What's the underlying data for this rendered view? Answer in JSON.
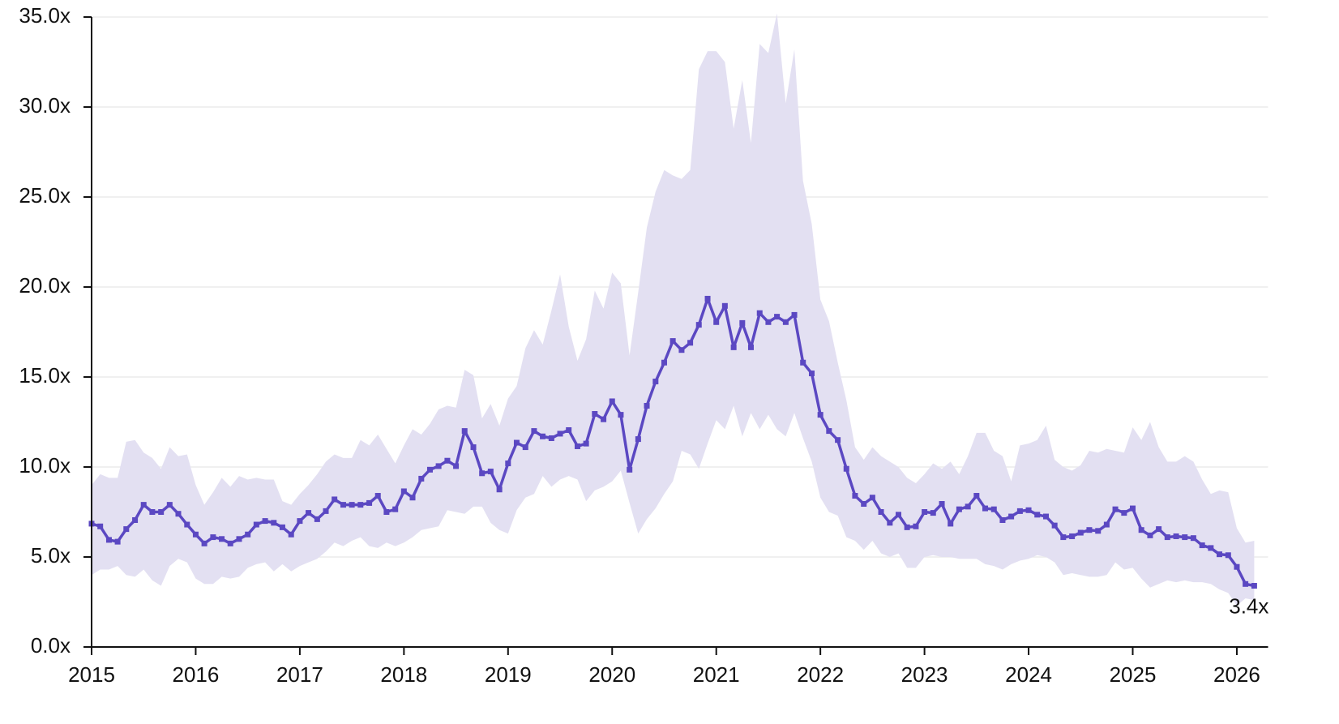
{
  "chart_data": {
    "type": "line",
    "x": [
      2015,
      2015.083,
      2015.167,
      2015.25,
      2015.333,
      2015.417,
      2015.5,
      2015.583,
      2015.667,
      2015.75,
      2015.833,
      2015.917,
      2016,
      2016.083,
      2016.167,
      2016.25,
      2016.333,
      2016.417,
      2016.5,
      2016.583,
      2016.667,
      2016.75,
      2016.833,
      2016.917,
      2017,
      2017.083,
      2017.167,
      2017.25,
      2017.333,
      2017.417,
      2017.5,
      2017.583,
      2017.667,
      2017.75,
      2017.833,
      2017.917,
      2018,
      2018.083,
      2018.167,
      2018.25,
      2018.333,
      2018.417,
      2018.5,
      2018.583,
      2018.667,
      2018.75,
      2018.833,
      2018.917,
      2019,
      2019.083,
      2019.167,
      2019.25,
      2019.333,
      2019.417,
      2019.5,
      2019.583,
      2019.667,
      2019.75,
      2019.833,
      2019.917,
      2020,
      2020.083,
      2020.167,
      2020.25,
      2020.333,
      2020.417,
      2020.5,
      2020.583,
      2020.667,
      2020.75,
      2020.833,
      2020.917,
      2021,
      2021.083,
      2021.167,
      2021.25,
      2021.333,
      2021.417,
      2021.5,
      2021.583,
      2021.667,
      2021.75,
      2021.833,
      2021.917,
      2022,
      2022.083,
      2022.167,
      2022.25,
      2022.333,
      2022.417,
      2022.5,
      2022.583,
      2022.667,
      2022.75,
      2022.833,
      2022.917,
      2023,
      2023.083,
      2023.167,
      2023.25,
      2023.333,
      2023.417,
      2023.5,
      2023.583,
      2023.667,
      2023.75,
      2023.833,
      2023.917,
      2024,
      2024.083,
      2024.167,
      2024.25,
      2024.333,
      2024.417,
      2024.5,
      2024.583,
      2024.667,
      2024.75,
      2024.833,
      2024.917,
      2025,
      2025.083,
      2025.167,
      2025.25,
      2025.333,
      2025.417,
      2025.5,
      2025.583,
      2025.667,
      2025.75,
      2025.833,
      2025.917,
      2026,
      2026.083,
      2026.167
    ],
    "series": [
      {
        "color": "#5b48c2",
        "values": [
          6.85,
          6.7,
          5.95,
          5.85,
          6.55,
          7.05,
          7.9,
          7.5,
          7.5,
          7.9,
          7.4,
          6.8,
          6.25,
          5.75,
          6.1,
          6.0,
          5.75,
          6.0,
          6.25,
          6.8,
          7.0,
          6.9,
          6.65,
          6.25,
          7.0,
          7.45,
          7.1,
          7.55,
          8.2,
          7.9,
          7.9,
          7.9,
          8.0,
          8.4,
          7.5,
          7.65,
          8.65,
          8.3,
          9.35,
          9.85,
          10.05,
          10.35,
          10.05,
          12.0,
          11.1,
          9.65,
          9.75,
          8.75,
          10.2,
          11.35,
          11.1,
          12.0,
          11.7,
          11.6,
          11.85,
          12.05,
          11.15,
          11.3,
          12.95,
          12.65,
          13.65,
          12.9,
          9.85,
          11.55,
          13.4,
          14.75,
          15.8,
          17.0,
          16.5,
          16.9,
          17.9,
          19.35,
          18.05,
          18.95,
          16.65,
          18.0,
          16.65,
          18.55,
          18.05,
          18.35,
          18.05,
          18.45,
          15.8,
          15.2,
          12.9,
          12.0,
          11.5,
          9.9,
          8.4,
          7.95,
          8.3,
          7.5,
          6.9,
          7.35,
          6.65,
          6.7,
          7.5,
          7.45,
          7.95,
          6.85,
          7.65,
          7.8,
          8.4,
          7.7,
          7.65,
          7.05,
          7.25,
          7.55,
          7.6,
          7.35,
          7.25,
          6.75,
          6.1,
          6.15,
          6.35,
          6.5,
          6.45,
          6.8,
          7.65,
          7.45,
          7.7,
          6.5,
          6.2,
          6.55,
          6.1,
          6.15,
          6.1,
          6.05,
          5.65,
          5.5,
          5.15,
          5.1,
          4.45,
          3.5,
          3.4
        ],
        "value_labels": [
          null,
          null,
          null,
          null,
          null,
          null,
          null,
          null,
          null,
          null,
          null,
          null,
          null,
          null,
          null,
          null,
          null,
          null,
          null,
          null,
          null,
          null,
          null,
          null,
          null,
          null,
          null,
          null,
          null,
          null,
          null,
          null,
          null,
          null,
          null,
          null,
          null,
          null,
          null,
          null,
          null,
          null,
          null,
          null,
          null,
          null,
          null,
          null,
          null,
          null,
          null,
          null,
          null,
          null,
          null,
          null,
          null,
          null,
          null,
          null,
          null,
          null,
          null,
          null,
          null,
          null,
          null,
          null,
          null,
          null,
          null,
          null,
          null,
          null,
          null,
          null,
          null,
          null,
          null,
          null,
          null,
          null,
          null,
          null,
          null,
          null,
          null,
          null,
          null,
          null,
          null,
          null,
          null,
          null,
          null,
          null,
          null,
          null,
          null,
          null,
          null,
          null,
          null,
          null,
          null,
          null,
          null,
          null,
          null,
          null,
          null,
          null,
          null,
          null,
          null,
          null,
          null,
          null,
          null,
          null,
          null,
          null,
          null,
          null,
          null,
          null,
          null,
          null,
          null,
          null,
          null,
          null,
          null,
          null,
          "3.4x"
        ]
      }
    ],
    "band": {
      "color": "#e3e0f2",
      "upper": [
        9.0,
        9.6,
        9.4,
        9.4,
        11.4,
        11.5,
        10.8,
        10.5,
        9.9,
        11.1,
        10.6,
        10.7,
        9.0,
        7.9,
        8.6,
        9.4,
        8.9,
        9.5,
        9.3,
        9.4,
        9.3,
        9.3,
        8.1,
        7.9,
        8.5,
        9.0,
        9.6,
        10.3,
        10.7,
        10.5,
        10.5,
        11.5,
        11.2,
        11.8,
        11.0,
        10.2,
        11.2,
        12.1,
        11.8,
        12.4,
        13.2,
        13.4,
        13.3,
        15.4,
        15.1,
        12.7,
        13.5,
        12.3,
        13.8,
        14.5,
        16.6,
        17.6,
        16.8,
        18.7,
        20.7,
        17.8,
        15.9,
        17.1,
        19.8,
        18.8,
        20.8,
        20.2,
        16.2,
        19.7,
        23.3,
        25.3,
        26.5,
        26.2,
        26.0,
        26.5,
        32.1,
        33.1,
        33.1,
        32.5,
        28.8,
        31.5,
        28.0,
        33.5,
        33.0,
        35.2,
        30.2,
        33.2,
        25.9,
        23.5,
        19.3,
        18.1,
        15.8,
        13.7,
        11.1,
        10.4,
        11.1,
        10.6,
        10.3,
        10.0,
        9.4,
        9.1,
        9.6,
        10.2,
        9.9,
        10.3,
        9.6,
        10.6,
        11.9,
        11.9,
        10.9,
        10.6,
        9.2,
        11.2,
        11.3,
        11.5,
        12.3,
        10.4,
        10.0,
        9.8,
        10.1,
        10.9,
        10.8,
        11.0,
        10.9,
        10.8,
        12.2,
        11.5,
        12.5,
        11.1,
        10.3,
        10.3,
        10.6,
        10.3,
        9.3,
        8.5,
        8.7,
        8.6,
        6.6,
        5.8,
        5.9
      ],
      "lower": [
        4.0,
        4.3,
        4.3,
        4.5,
        4.0,
        3.9,
        4.3,
        3.7,
        3.4,
        4.5,
        4.9,
        4.7,
        3.8,
        3.5,
        3.5,
        3.9,
        3.8,
        3.9,
        4.4,
        4.6,
        4.7,
        4.2,
        4.6,
        4.2,
        4.5,
        4.7,
        4.9,
        5.3,
        5.8,
        5.6,
        5.9,
        6.1,
        5.6,
        5.5,
        5.8,
        5.6,
        5.8,
        6.1,
        6.5,
        6.6,
        6.7,
        7.6,
        7.5,
        7.4,
        7.8,
        7.8,
        6.9,
        6.5,
        6.3,
        7.6,
        8.3,
        8.5,
        9.5,
        8.9,
        9.3,
        9.5,
        9.3,
        8.1,
        8.7,
        8.9,
        9.2,
        9.8,
        8.0,
        6.3,
        7.1,
        7.7,
        8.5,
        9.2,
        10.9,
        10.7,
        9.9,
        11.3,
        12.6,
        12.1,
        13.4,
        11.7,
        13.0,
        12.1,
        12.9,
        12.1,
        11.7,
        13.0,
        11.6,
        10.3,
        8.3,
        7.5,
        7.3,
        6.1,
        5.9,
        5.4,
        5.9,
        5.2,
        5.0,
        5.2,
        4.4,
        4.4,
        5.0,
        5.1,
        5.0,
        5.0,
        4.9,
        4.9,
        4.9,
        4.6,
        4.5,
        4.3,
        4.6,
        4.8,
        4.9,
        5.1,
        5.0,
        4.7,
        4.0,
        4.1,
        4.0,
        3.9,
        3.9,
        4.0,
        4.7,
        4.3,
        4.4,
        3.8,
        3.3,
        3.5,
        3.7,
        3.6,
        3.7,
        3.6,
        3.6,
        3.5,
        3.2,
        3.0,
        2.3,
        2.7,
        2.6
      ]
    },
    "xlim": [
      2015,
      2026.3
    ],
    "xticks": [
      2015,
      2016,
      2017,
      2018,
      2019,
      2020,
      2021,
      2022,
      2023,
      2024,
      2025,
      2026
    ],
    "ylim": [
      0,
      35
    ],
    "yticks": [
      {
        "value": 0,
        "label": "0.0x"
      },
      {
        "value": 5,
        "label": "5.0x"
      },
      {
        "value": 10,
        "label": "10.0x"
      },
      {
        "value": 15,
        "label": "15.0x"
      },
      {
        "value": 20,
        "label": "20.0x"
      },
      {
        "value": 25,
        "label": "25.0x"
      },
      {
        "value": 30,
        "label": "30.0x"
      },
      {
        "value": 35,
        "label": "35.0x"
      }
    ],
    "grid": true
  }
}
